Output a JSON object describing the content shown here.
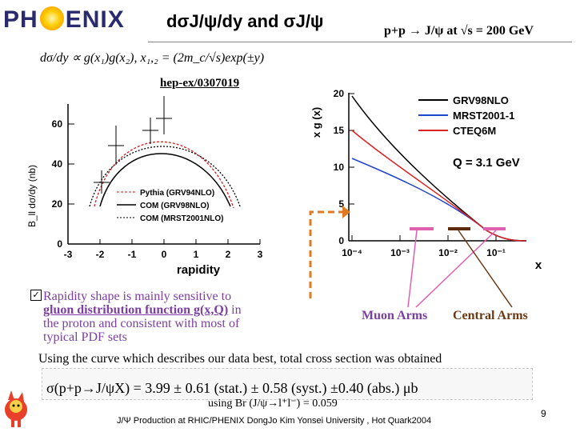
{
  "header": {
    "logo_text": "PHENIX",
    "title": "dσJ/ψ/dy and σJ/ψ",
    "subtitle": "p+p → J/ψ at √s = 200 GeV"
  },
  "formula": "dσ/dy ∝ g(x₁)g(x₂), x₁,₂ = (2m_c/√s)exp(±y)",
  "reference": "hep-ex/0307019",
  "left_chart": {
    "ylabel": "B_ll dσ/dy (nb)",
    "xlabel": "rapidity",
    "x_ticks": [
      "-3",
      "-2",
      "-1",
      "0",
      "1",
      "2",
      "3"
    ],
    "y_ticks": [
      "0",
      "20",
      "40",
      "60"
    ],
    "legend": [
      "Pythia (GRV94NLO)",
      "COM (GRV98NLO)",
      "COM (MRST2001NLO)"
    ],
    "colors": {
      "pythia": "#cc2222",
      "grv": "#000000",
      "mrst": "#000000"
    }
  },
  "right_chart": {
    "ylabel": "x g (x)",
    "xlabel": "x",
    "y_ticks": [
      "0",
      "5",
      "10",
      "15",
      "20"
    ],
    "x_ticks": [
      "10⁻⁴",
      "10⁻³",
      "10⁻²",
      "10⁻¹"
    ],
    "legend": [
      "GRV98NLO",
      "MRST2001-1",
      "CTEQ6M"
    ],
    "legend_colors": [
      "#000000",
      "#2244cc",
      "#dd2222"
    ],
    "scale_label": "Q = 3.1 GeV",
    "muon_color": "#e060b0",
    "central_color": "#5a2a0a"
  },
  "chart_data": [
    {
      "type": "scatter",
      "title": "",
      "xlabel": "rapidity",
      "ylabel": "B_ll dσ/dy (nb)",
      "xlim": [
        -3,
        3
      ],
      "ylim": [
        0,
        70
      ],
      "series": [
        {
          "name": "data",
          "x": [
            -1.7,
            -1.4,
            -0.7,
            0.0
          ],
          "y": [
            29,
            49,
            47,
            57
          ]
        }
      ]
    },
    {
      "type": "line",
      "title": "",
      "xlabel": "x",
      "ylabel": "x g (x)",
      "log_x": true,
      "xlim": [
        0.0001,
        0.3
      ],
      "ylim": [
        0,
        20
      ],
      "series": [
        {
          "name": "GRV98NLO",
          "x": [
            0.0001,
            0.0003,
            0.001,
            0.003,
            0.01,
            0.03,
            0.1,
            0.3
          ],
          "y": [
            20,
            14,
            10.5,
            7.8,
            5.4,
            3.2,
            1.3,
            0.2
          ]
        },
        {
          "name": "MRST2001-1",
          "x": [
            0.0001,
            0.0003,
            0.001,
            0.003,
            0.01,
            0.03,
            0.1,
            0.3
          ],
          "y": [
            12,
            10,
            8.6,
            7.2,
            5.5,
            3.4,
            1.4,
            0.2
          ]
        },
        {
          "name": "CTEQ6M",
          "x": [
            0.0001,
            0.0003,
            0.001,
            0.003,
            0.01,
            0.03,
            0.1,
            0.3
          ],
          "y": [
            15,
            12,
            9.8,
            7.6,
            5.5,
            3.3,
            1.3,
            0.2
          ]
        }
      ]
    }
  ],
  "bullet": {
    "check_glyph": "✓",
    "line1": "Rapidity shape is mainly sensitive to",
    "line2": "gluon distribution function g(x,Q)",
    "line2_tail": " in",
    "line3": "the proton and consistent with most of",
    "line4": "typical PDF sets"
  },
  "arms": {
    "muon": "Muon Arms",
    "central": "Central Arms"
  },
  "note": "Using the curve which describes our data best, total cross section was obtained",
  "result": "σ(p+p→J/ψX) = 3.99 ± 0.61 (stat.) ± 0.58 (syst.) ±0.40 (abs.) μb",
  "branching": "using Br (J/ψ→l⁺l⁻) = 0.059",
  "footer": "J/Ψ Production at RHIC/PHENIX  DongJo Kim Yonsei University , Hot Quark2004",
  "page_number": "9"
}
